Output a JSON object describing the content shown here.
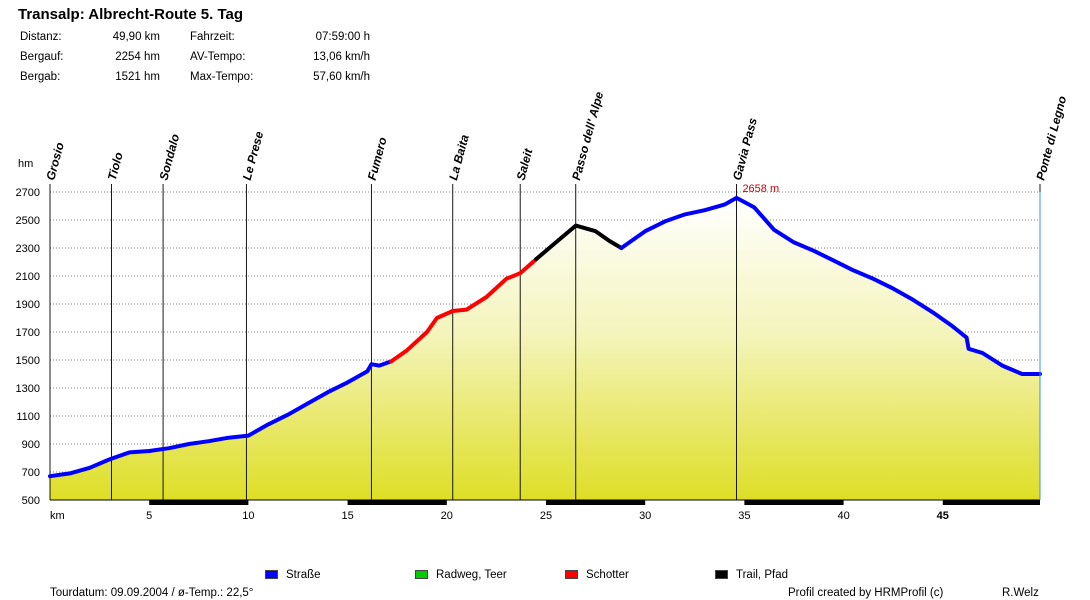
{
  "title": "Transalp: Albrecht-Route 5. Tag",
  "stats": {
    "distance_label": "Distanz:",
    "distance": "49,90 km",
    "ascent_label": "Bergauf:",
    "ascent": "2254 hm",
    "descent_label": "Bergab:",
    "descent": "1521 hm",
    "time_label": "Fahrzeit:",
    "time": "07:59:00 h",
    "avg_label": "AV-Tempo:",
    "avg": "13,06 km/h",
    "max_label": "Max-Tempo:",
    "max": "57,60 km/h"
  },
  "legend": [
    {
      "label": "Straße",
      "color": "#0000ff"
    },
    {
      "label": "Radweg, Teer",
      "color": "#00cc00"
    },
    {
      "label": "Schotter",
      "color": "#ff0000"
    },
    {
      "label": "Trail, Pfad",
      "color": "#000000"
    }
  ],
  "footer": {
    "date": "Tourdatum: 09.09.2004  /  ø-Temp.: 22,5°",
    "credit": "Profil created by HRMProfil (c)",
    "author": "R.Welz"
  },
  "chart_data": {
    "type": "area",
    "title": "Transalp: Albrecht-Route 5. Tag",
    "xlabel": "km",
    "ylabel": "hm",
    "xlim": [
      0,
      49.9
    ],
    "ylim": [
      500,
      2700
    ],
    "xticks": [
      5,
      10,
      15,
      20,
      25,
      30,
      35,
      40,
      45
    ],
    "yticks": [
      500,
      700,
      900,
      1100,
      1300,
      1500,
      1700,
      1900,
      2100,
      2300,
      2500,
      2700
    ],
    "max_annotation": {
      "label": "2658 m",
      "x": 34.6,
      "y": 2658
    },
    "waypoints": [
      {
        "name": "Grosio",
        "km": 0
      },
      {
        "name": "Tiolo",
        "km": 3.1
      },
      {
        "name": "Sondalo",
        "km": 5.7
      },
      {
        "name": "Le Prese",
        "km": 9.9
      },
      {
        "name": "Fumero",
        "km": 16.2
      },
      {
        "name": "La Baita",
        "km": 20.3
      },
      {
        "name": "Saleit",
        "km": 23.7
      },
      {
        "name": "Passo dell' Alpe",
        "km": 26.5
      },
      {
        "name": "Gavia Pass",
        "km": 34.6
      },
      {
        "name": "Ponte di Legno",
        "km": 49.9
      }
    ],
    "series": [
      {
        "name": "Straße",
        "color": "#0000ff",
        "points": [
          [
            0,
            670
          ],
          [
            1,
            690
          ],
          [
            2,
            730
          ],
          [
            3,
            790
          ],
          [
            4,
            840
          ],
          [
            5,
            850
          ],
          [
            6,
            870
          ],
          [
            7,
            900
          ],
          [
            8,
            920
          ],
          [
            9,
            945
          ],
          [
            10,
            960
          ],
          [
            11,
            1040
          ],
          [
            12,
            1110
          ],
          [
            13,
            1190
          ],
          [
            14,
            1270
          ],
          [
            15,
            1340
          ],
          [
            16,
            1420
          ],
          [
            16.2,
            1470
          ],
          [
            16.6,
            1460
          ],
          [
            17.2,
            1490
          ]
        ]
      },
      {
        "name": "Schotter",
        "color": "#ff0000",
        "points": [
          [
            17.2,
            1490
          ],
          [
            18,
            1570
          ],
          [
            19,
            1700
          ],
          [
            19.5,
            1800
          ],
          [
            20.3,
            1850
          ],
          [
            21,
            1860
          ],
          [
            22,
            1950
          ],
          [
            23,
            2080
          ],
          [
            23.7,
            2120
          ],
          [
            24.5,
            2220
          ]
        ]
      },
      {
        "name": "Trail, Pfad",
        "color": "#000000",
        "points": [
          [
            24.5,
            2220
          ],
          [
            25.5,
            2340
          ],
          [
            26.5,
            2460
          ],
          [
            27.5,
            2420
          ],
          [
            28.2,
            2350
          ],
          [
            28.8,
            2300
          ]
        ]
      },
      {
        "name": "Straße",
        "color": "#0000ff",
        "points": [
          [
            28.8,
            2300
          ],
          [
            30,
            2420
          ],
          [
            31,
            2490
          ],
          [
            32,
            2540
          ],
          [
            33,
            2570
          ],
          [
            34,
            2610
          ],
          [
            34.6,
            2658
          ],
          [
            35.5,
            2590
          ],
          [
            36.5,
            2430
          ],
          [
            37.5,
            2340
          ],
          [
            38.5,
            2280
          ],
          [
            39.5,
            2210
          ],
          [
            40.5,
            2140
          ],
          [
            41.5,
            2080
          ],
          [
            42.5,
            2010
          ],
          [
            43.5,
            1930
          ],
          [
            44.5,
            1840
          ],
          [
            45.5,
            1740
          ],
          [
            46.2,
            1660
          ],
          [
            46.3,
            1580
          ],
          [
            47,
            1550
          ],
          [
            48,
            1460
          ],
          [
            49,
            1400
          ],
          [
            49.9,
            1400
          ]
        ]
      }
    ]
  }
}
